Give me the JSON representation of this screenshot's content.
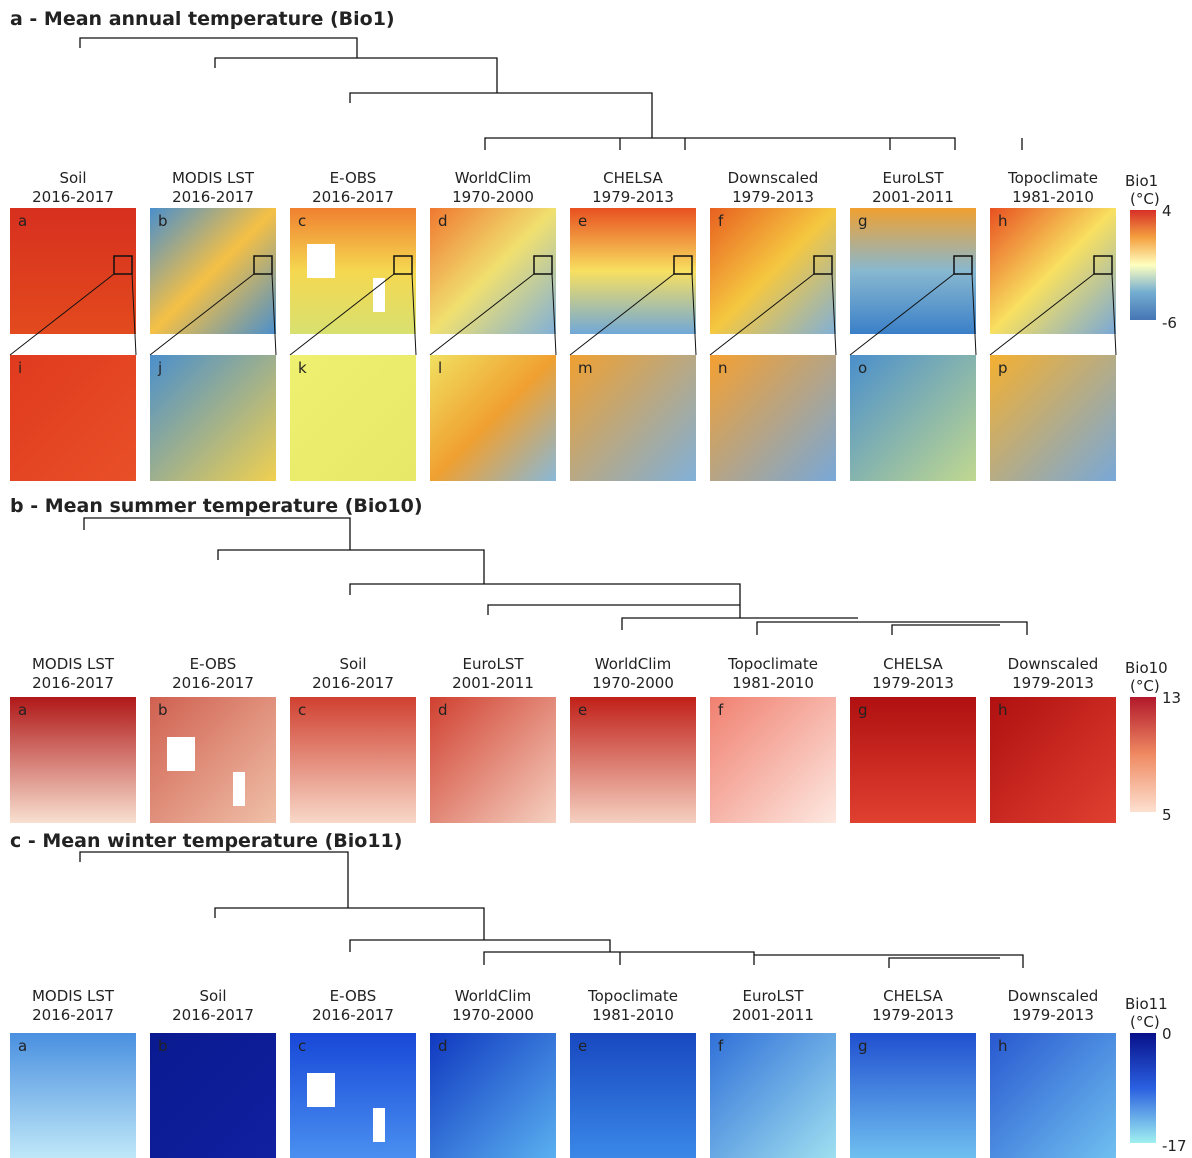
{
  "sections": [
    {
      "title": "a - Mean annual temperature (Bio1)",
      "legend": {
        "label": "Bio1",
        "unit": "(°C)",
        "max": 4,
        "min": -6
      },
      "panels": [
        {
          "letter": "a",
          "name": "Soil",
          "period": "2016-2017"
        },
        {
          "letter": "b",
          "name": "MODIS LST",
          "period": "2016-2017"
        },
        {
          "letter": "c",
          "name": "E-OBS",
          "period": "2016-2017"
        },
        {
          "letter": "d",
          "name": "WorldClim",
          "period": "1970-2000"
        },
        {
          "letter": "e",
          "name": "CHELSA",
          "period": "1979-2013"
        },
        {
          "letter": "f",
          "name": "Downscaled",
          "period": "1979-2013"
        },
        {
          "letter": "g",
          "name": "EuroLST",
          "period": "2001-2011"
        },
        {
          "letter": "h",
          "name": "Topoclimate",
          "period": "1981-2010"
        }
      ],
      "zoom_letters": [
        "i",
        "j",
        "k",
        "l",
        "m",
        "n",
        "o",
        "p"
      ]
    },
    {
      "title": "b - Mean summer temperature (Bio10)",
      "legend": {
        "label": "Bio10",
        "unit": "(°C)",
        "max": 13,
        "min": 5
      },
      "panels": [
        {
          "letter": "a",
          "name": "MODIS LST",
          "period": "2016-2017"
        },
        {
          "letter": "b",
          "name": "E-OBS",
          "period": "2016-2017"
        },
        {
          "letter": "c",
          "name": "Soil",
          "period": "2016-2017"
        },
        {
          "letter": "d",
          "name": "EuroLST",
          "period": "2001-2011"
        },
        {
          "letter": "e",
          "name": "WorldClim",
          "period": "1970-2000"
        },
        {
          "letter": "f",
          "name": "Topoclimate",
          "period": "1981-2010"
        },
        {
          "letter": "g",
          "name": "CHELSA",
          "period": "1979-2013"
        },
        {
          "letter": "h",
          "name": "Downscaled",
          "period": "1979-2013"
        }
      ]
    },
    {
      "title": "c - Mean winter temperature (Bio11)",
      "legend": {
        "label": "Bio11",
        "unit": "(°C)",
        "max": 0,
        "min": -17
      },
      "panels": [
        {
          "letter": "a",
          "name": "MODIS LST",
          "period": "2016-2017"
        },
        {
          "letter": "b",
          "name": "Soil",
          "period": "2016-2017"
        },
        {
          "letter": "c",
          "name": "E-OBS",
          "period": "2016-2017"
        },
        {
          "letter": "d",
          "name": "WorldClim",
          "period": "1970-2000"
        },
        {
          "letter": "e",
          "name": "Topoclimate",
          "period": "1981-2010"
        },
        {
          "letter": "f",
          "name": "EuroLST",
          "period": "2001-2011"
        },
        {
          "letter": "g",
          "name": "CHELSA",
          "period": "1979-2013"
        },
        {
          "letter": "h",
          "name": "Downscaled",
          "period": "1979-2013"
        }
      ]
    }
  ]
}
